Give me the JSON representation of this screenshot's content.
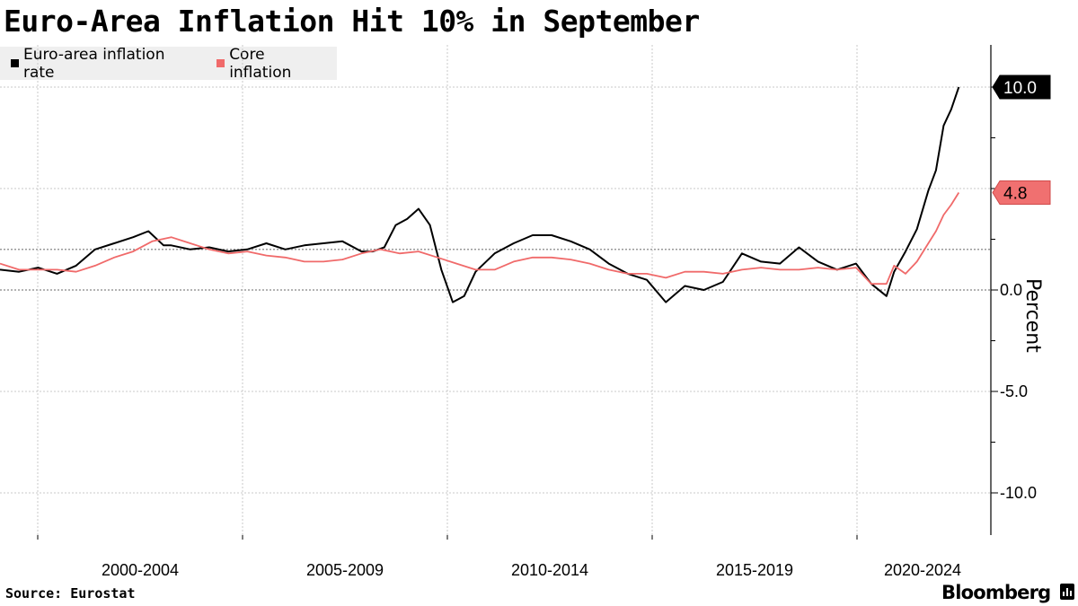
{
  "title": "Euro-Area Inflation Hit 10% in September",
  "source": "Source: Eurostat",
  "brand": "Bloomberg",
  "colors": {
    "headline": "#000000",
    "core": "#f06a6a",
    "grid": "#c8c8c8",
    "legend_bg": "#efefef"
  },
  "chart_data": {
    "type": "line",
    "title": "Euro-Area Inflation Hit 10% in September",
    "ylabel": "Percent",
    "xlabel": "",
    "x_tick_labels": [
      "2000-2004",
      "2005-2009",
      "2010-2014",
      "2015-2019",
      "2020-2024"
    ],
    "y_ticks": [
      "10.0",
      "5.0",
      "0.0",
      "-5.0",
      "-10.0"
    ],
    "ylim": [
      -12,
      12.5
    ],
    "xlim": [
      1997.5,
      2023.0
    ],
    "grid": true,
    "legend_position": "top-left",
    "last_value_labels": [
      "10.0",
      "4.8"
    ],
    "series": [
      {
        "name": "Euro-area inflation rate",
        "color": "#000000",
        "x": [
          1997.5,
          1998.0,
          1998.5,
          1999.0,
          1999.5,
          2000.0,
          2000.5,
          2001.0,
          2001.4,
          2001.8,
          2002.0,
          2002.5,
          2003.0,
          2003.5,
          2004.0,
          2004.5,
          2005.0,
          2005.5,
          2006.0,
          2006.5,
          2007.0,
          2007.3,
          2007.6,
          2007.9,
          2008.2,
          2008.5,
          2008.8,
          2009.1,
          2009.4,
          2009.7,
          2010.0,
          2010.5,
          2011.0,
          2011.5,
          2012.0,
          2012.5,
          2013.0,
          2013.5,
          2014.0,
          2014.5,
          2015.0,
          2015.5,
          2016.0,
          2016.5,
          2017.0,
          2017.5,
          2018.0,
          2018.5,
          2019.0,
          2019.5,
          2020.0,
          2020.4,
          2020.8,
          2021.0,
          2021.3,
          2021.6,
          2021.9,
          2022.1,
          2022.3,
          2022.5,
          2022.7
        ],
        "values": [
          1.0,
          0.9,
          1.1,
          0.8,
          1.2,
          2.0,
          2.3,
          2.6,
          2.9,
          2.2,
          2.2,
          2.0,
          2.1,
          1.9,
          2.0,
          2.3,
          2.0,
          2.2,
          2.3,
          2.4,
          1.9,
          1.9,
          2.1,
          3.2,
          3.5,
          4.0,
          3.2,
          1.0,
          -0.6,
          -0.3,
          0.9,
          1.8,
          2.3,
          2.7,
          2.7,
          2.4,
          2.0,
          1.3,
          0.8,
          0.5,
          -0.6,
          0.2,
          0.0,
          0.4,
          1.8,
          1.4,
          1.3,
          2.1,
          1.4,
          1.0,
          1.3,
          0.3,
          -0.3,
          0.9,
          1.9,
          3.0,
          4.9,
          5.9,
          8.1,
          8.9,
          10.0
        ]
      },
      {
        "name": "Core inflation",
        "color": "#f06a6a",
        "x": [
          1997.5,
          1998.0,
          1999.0,
          1999.5,
          2000.0,
          2000.5,
          2001.0,
          2001.5,
          2002.0,
          2002.5,
          2003.0,
          2003.5,
          2004.0,
          2004.5,
          2005.0,
          2005.5,
          2006.0,
          2006.5,
          2007.0,
          2007.5,
          2008.0,
          2008.5,
          2009.0,
          2009.5,
          2010.0,
          2010.5,
          2011.0,
          2011.5,
          2012.0,
          2012.5,
          2013.0,
          2013.5,
          2014.0,
          2014.5,
          2015.0,
          2015.5,
          2016.0,
          2016.5,
          2017.0,
          2017.5,
          2018.0,
          2018.5,
          2019.0,
          2019.5,
          2020.0,
          2020.4,
          2020.8,
          2021.0,
          2021.3,
          2021.6,
          2021.9,
          2022.1,
          2022.3,
          2022.5,
          2022.7
        ],
        "values": [
          1.3,
          1.0,
          1.0,
          0.9,
          1.2,
          1.6,
          1.9,
          2.4,
          2.6,
          2.3,
          2.0,
          1.8,
          1.9,
          1.7,
          1.6,
          1.4,
          1.4,
          1.5,
          1.8,
          2.0,
          1.8,
          1.9,
          1.6,
          1.3,
          1.0,
          1.0,
          1.4,
          1.6,
          1.6,
          1.5,
          1.3,
          1.0,
          0.8,
          0.8,
          0.6,
          0.9,
          0.9,
          0.8,
          1.0,
          1.1,
          1.0,
          1.0,
          1.1,
          1.0,
          1.1,
          0.3,
          0.3,
          1.2,
          0.8,
          1.4,
          2.3,
          2.9,
          3.7,
          4.2,
          4.8
        ]
      }
    ]
  }
}
